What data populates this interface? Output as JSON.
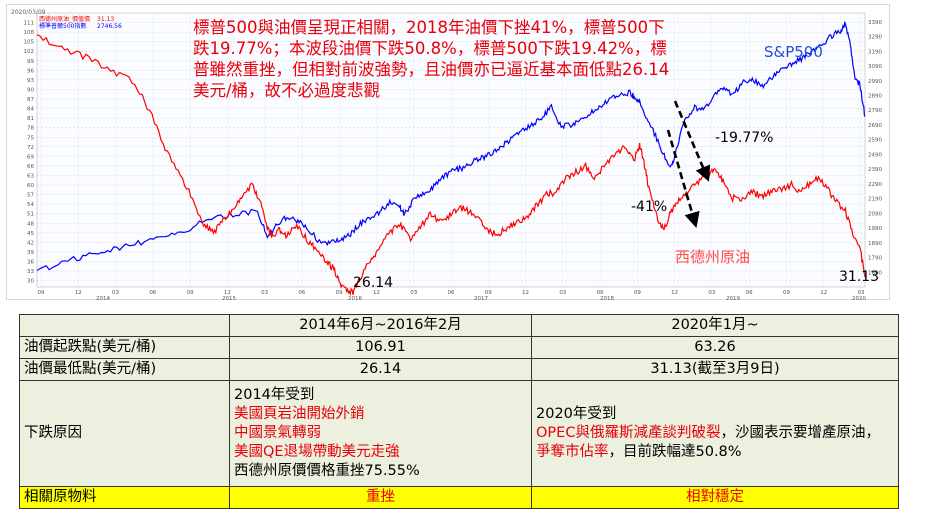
{
  "chart_data": {
    "type": "line",
    "legend": {
      "series_1_label": "西德州原油_價值價",
      "series_1_value": "31.13",
      "series_2_label": "標準普爾500指數",
      "series_2_value": "2746.56"
    },
    "date_stamp": "2020/03/09",
    "left_axis": {
      "ylim": [
        28,
        114
      ],
      "ticks": [
        "111",
        "108",
        "105",
        "102",
        "99",
        "96",
        "93",
        "90",
        "87",
        "84",
        "81",
        "78",
        "75",
        "72",
        "69",
        "66",
        "63",
        "60",
        "57",
        "54",
        "51",
        "48",
        "45",
        "42",
        "39",
        "36",
        "33",
        "30"
      ]
    },
    "right_axis": {
      "ylim": [
        1590,
        3450
      ],
      "ticks": [
        "3390",
        "3290",
        "3190",
        "3090",
        "2990",
        "2890",
        "2790",
        "2690",
        "2590",
        "2490",
        "2390",
        "2290",
        "2190",
        "2090",
        "1990",
        "1890",
        "1790",
        "1690"
      ]
    },
    "x_ticks": [
      "09",
      "12",
      "03",
      "06",
      "09",
      "12",
      "03",
      "06",
      "09",
      "12",
      "03",
      "06",
      "09",
      "12",
      "03",
      "06",
      "09",
      "12",
      "03",
      "06",
      "09",
      "12",
      "03"
    ],
    "year_labels": [
      "2014",
      "2015",
      "2016",
      "2017",
      "2018",
      "2019",
      "2020"
    ],
    "series": [
      {
        "name": "西德州原油",
        "color": "#ff0000",
        "axis": "left",
        "points": [
          [
            0,
            106.9
          ],
          [
            10,
            103
          ],
          [
            20,
            100
          ],
          [
            30,
            96
          ],
          [
            40,
            92
          ],
          [
            48,
            80
          ],
          [
            55,
            67
          ],
          [
            62,
            58
          ],
          [
            68,
            48
          ],
          [
            72,
            45
          ],
          [
            76,
            49
          ],
          [
            80,
            52
          ],
          [
            84,
            56
          ],
          [
            88,
            60
          ],
          [
            91,
            55
          ],
          [
            94,
            46
          ],
          [
            96,
            44
          ],
          [
            99,
            46
          ],
          [
            102,
            44
          ],
          [
            106,
            47
          ],
          [
            110,
            43
          ],
          [
            114,
            40
          ],
          [
            118,
            36
          ],
          [
            121,
            34
          ],
          [
            123,
            30
          ],
          [
            126,
            27
          ],
          [
            129,
            26.14
          ],
          [
            132,
            31
          ],
          [
            136,
            36
          ],
          [
            140,
            41
          ],
          [
            144,
            45
          ],
          [
            148,
            48
          ],
          [
            152,
            43
          ],
          [
            156,
            46
          ],
          [
            160,
            51
          ],
          [
            164,
            49
          ],
          [
            168,
            50
          ],
          [
            172,
            53
          ],
          [
            176,
            52
          ],
          [
            180,
            50
          ],
          [
            184,
            46
          ],
          [
            188,
            44
          ],
          [
            192,
            47
          ],
          [
            196,
            48
          ],
          [
            200,
            50
          ],
          [
            204,
            54
          ],
          [
            208,
            57
          ],
          [
            212,
            58
          ],
          [
            216,
            62
          ],
          [
            220,
            64
          ],
          [
            224,
            66
          ],
          [
            228,
            62
          ],
          [
            232,
            67
          ],
          [
            236,
            69
          ],
          [
            240,
            72
          ],
          [
            244,
            68
          ],
          [
            246,
            73
          ],
          [
            248,
            66
          ],
          [
            250,
            58
          ],
          [
            253,
            50
          ],
          [
            256,
            46
          ],
          [
            259,
            52
          ],
          [
            262,
            55
          ],
          [
            266,
            58
          ],
          [
            270,
            61
          ],
          [
            274,
            63
          ],
          [
            277,
            65
          ],
          [
            280,
            61
          ],
          [
            284,
            56
          ],
          [
            288,
            55
          ],
          [
            292,
            58
          ],
          [
            296,
            56
          ],
          [
            300,
            58
          ],
          [
            304,
            59
          ],
          [
            308,
            60
          ],
          [
            312,
            58
          ],
          [
            316,
            61
          ],
          [
            320,
            62
          ],
          [
            324,
            57
          ],
          [
            326,
            55
          ],
          [
            330,
            52
          ],
          [
            333,
            45
          ],
          [
            336,
            40
          ],
          [
            338,
            31.13
          ]
        ]
      },
      {
        "name": "S&P500",
        "color": "#0000ff",
        "axis": "right",
        "points": [
          [
            0,
            1690
          ],
          [
            10,
            1760
          ],
          [
            20,
            1800
          ],
          [
            30,
            1840
          ],
          [
            40,
            1880
          ],
          [
            50,
            1935
          ],
          [
            60,
            1970
          ],
          [
            70,
            2050
          ],
          [
            80,
            2080
          ],
          [
            90,
            2105
          ],
          [
            94,
            1930
          ],
          [
            98,
            2010
          ],
          [
            102,
            2070
          ],
          [
            106,
            2040
          ],
          [
            110,
            2000
          ],
          [
            116,
            1880
          ],
          [
            120,
            1900
          ],
          [
            124,
            1910
          ],
          [
            128,
            1950
          ],
          [
            132,
            2020
          ],
          [
            136,
            2060
          ],
          [
            140,
            2100
          ],
          [
            144,
            2170
          ],
          [
            148,
            2140
          ],
          [
            150,
            2080
          ],
          [
            154,
            2190
          ],
          [
            158,
            2230
          ],
          [
            162,
            2270
          ],
          [
            166,
            2340
          ],
          [
            170,
            2380
          ],
          [
            174,
            2400
          ],
          [
            178,
            2440
          ],
          [
            182,
            2470
          ],
          [
            186,
            2500
          ],
          [
            190,
            2550
          ],
          [
            194,
            2600
          ],
          [
            198,
            2650
          ],
          [
            202,
            2690
          ],
          [
            206,
            2740
          ],
          [
            210,
            2810
          ],
          [
            214,
            2680
          ],
          [
            218,
            2690
          ],
          [
            222,
            2720
          ],
          [
            226,
            2780
          ],
          [
            230,
            2820
          ],
          [
            234,
            2870
          ],
          [
            238,
            2890
          ],
          [
            242,
            2910
          ],
          [
            244,
            2880
          ],
          [
            246,
            2850
          ],
          [
            250,
            2700
          ],
          [
            254,
            2560
          ],
          [
            258,
            2400
          ],
          [
            260,
            2460
          ],
          [
            264,
            2700
          ],
          [
            268,
            2810
          ],
          [
            272,
            2790
          ],
          [
            276,
            2880
          ],
          [
            280,
            2940
          ],
          [
            284,
            2890
          ],
          [
            288,
            2980
          ],
          [
            292,
            3000
          ],
          [
            296,
            2950
          ],
          [
            300,
            3010
          ],
          [
            304,
            3060
          ],
          [
            308,
            3100
          ],
          [
            312,
            3140
          ],
          [
            316,
            3180
          ],
          [
            320,
            3230
          ],
          [
            324,
            3290
          ],
          [
            328,
            3330
          ],
          [
            330,
            3390
          ],
          [
            332,
            3230
          ],
          [
            334,
            3000
          ],
          [
            336,
            2960
          ],
          [
            338,
            2746.56
          ]
        ]
      }
    ],
    "labels": {
      "sp500": "S&P500",
      "oil": "西德州原油",
      "sp_drop": "-19.77%",
      "oil_drop": "-41%",
      "low_2016": "26.14",
      "low_2020": "31.13"
    }
  },
  "annotation": {
    "text": "標普500與油價呈現正相關，2018年油價下挫41%，標普500下跌19.77%；本波段油價下跌50.8%，標普500下跌19.42%，標普雖然重挫，但相對前波強勢，且油價亦已逼近基本面低點26.14美元/桶，故不必過度悲觀"
  },
  "table": {
    "headers": [
      "",
      "2014年6月~2016年2月",
      "2020年1月~"
    ],
    "rows": [
      {
        "label": "油價起跌點(美元/桶)",
        "a": "106.91",
        "b": "63.26"
      },
      {
        "label": "油價最低點(美元/桶)",
        "a": "26.14",
        "b": "31.13(截至3月9日)"
      }
    ],
    "reason": {
      "label": "下跌原因",
      "a_intro": "2014年受到",
      "a_red_1": "美國頁岩油開始外銷",
      "a_red_2": "中國景氣轉弱",
      "a_red_3": "美國QE退場帶動美元走強",
      "a_outro": "西德州原價價格重挫75.55%",
      "b_intro": "2020年受到",
      "b_red_1": "OPEC與俄羅斯減產談判破裂",
      "b_mid": "，沙國表示要增產原油，",
      "b_red_2": "爭奪市佔率",
      "b_outro": "，目前跌幅達50.8%"
    },
    "last_row": {
      "label": "相關原物料",
      "a": "重挫",
      "b": "相對穩定"
    }
  }
}
